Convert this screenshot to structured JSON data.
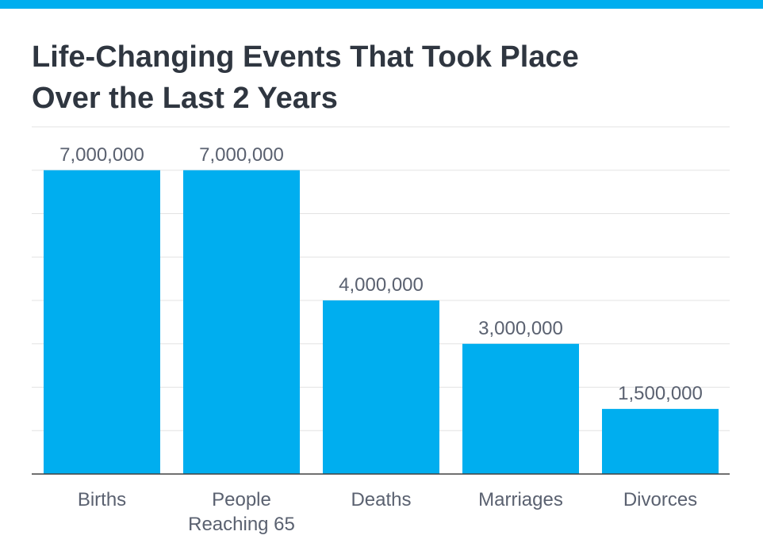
{
  "colors": {
    "accent": "#00aeef",
    "bar": "#00aeef",
    "title": "#2f3640",
    "label": "#5a6170",
    "grid": "#e3e3e3",
    "axis": "#404040"
  },
  "header": {
    "title_line_1": "Life-Changing Events That Took Place",
    "title_line_2": "Over the Last 2 Years"
  },
  "chart_data": {
    "type": "bar",
    "title": "Life-Changing Events That Took Place Over the Last 2 Years",
    "categories": [
      [
        "Births"
      ],
      [
        "People",
        "Reaching 65"
      ],
      [
        "Deaths"
      ],
      [
        "Marriages"
      ],
      [
        "Divorces"
      ]
    ],
    "values": [
      7000000,
      7000000,
      4000000,
      3000000,
      1500000
    ],
    "data_labels": [
      "7,000,000",
      "7,000,000",
      "4,000,000",
      "3,000,000",
      "1,500,000"
    ],
    "xlabel": "",
    "ylabel": "",
    "ylim": [
      0,
      8000000
    ],
    "gridline_step": 1000000,
    "grid": true,
    "legend": "none"
  }
}
